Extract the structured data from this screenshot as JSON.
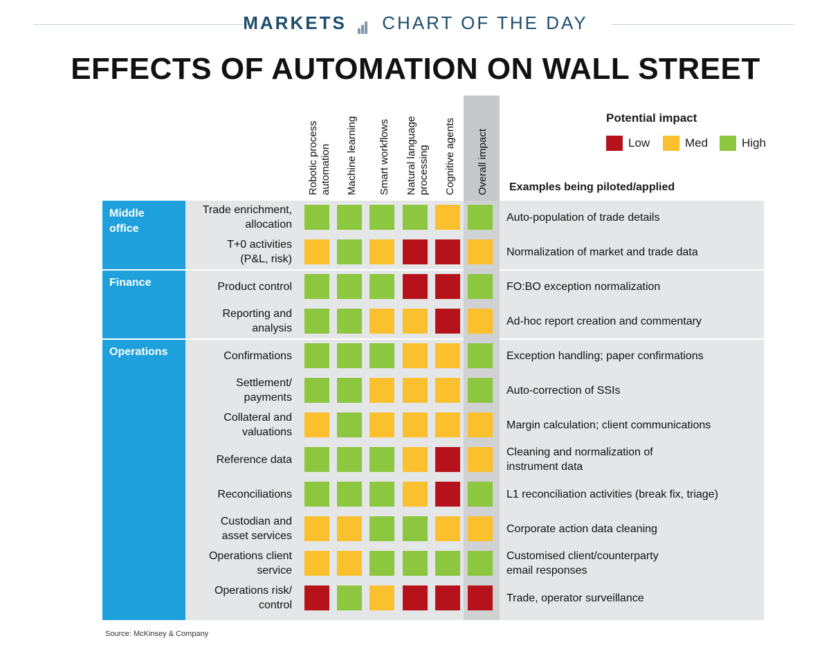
{
  "header": {
    "markets": "MARKETS",
    "chart_of_the_day": "CHART OF THE DAY"
  },
  "colors": {
    "low": "#b5121b",
    "med": "#fbc02d",
    "high": "#8dc63f",
    "section": "#1da0dc",
    "row_bg": "#e4e6e7",
    "overall_bg": "#c6c8ca"
  },
  "icons": {
    "header_icon": "bar-chart-icon"
  },
  "legend": {
    "title": "Potential impact",
    "items": [
      {
        "key": "low",
        "label": "Low"
      },
      {
        "key": "med",
        "label": "Med"
      },
      {
        "key": "high",
        "label": "High"
      }
    ]
  },
  "examples_header": "Examples being piloted/applied",
  "source": "Source: McKinsey & Company",
  "chart_data": {
    "type": "table",
    "title": "EFFECTS OF AUTOMATION ON WALL STREET",
    "columns": [
      {
        "lines": [
          "Robotic process",
          "automation"
        ]
      },
      {
        "lines": [
          "Machine learning"
        ]
      },
      {
        "lines": [
          "Smart workflows"
        ]
      },
      {
        "lines": [
          "Natural language",
          "processing"
        ]
      },
      {
        "lines": [
          "Cognitive agents"
        ]
      },
      {
        "lines": [
          "Overall impact"
        ]
      }
    ],
    "sections": [
      {
        "name_lines": [
          "Middle",
          "office"
        ],
        "rows": [
          0,
          1
        ]
      },
      {
        "name_lines": [
          "Finance"
        ],
        "rows": [
          2,
          3
        ]
      },
      {
        "name_lines": [
          "Operations"
        ],
        "rows": [
          4,
          5,
          6,
          7,
          8,
          9,
          10,
          11
        ]
      }
    ],
    "rows": [
      {
        "label_lines": [
          "Trade enrichment,",
          "allocation"
        ],
        "values": [
          "high",
          "high",
          "high",
          "high",
          "med",
          "high"
        ],
        "example_lines": [
          "Auto-population of trade details"
        ]
      },
      {
        "label_lines": [
          "T+0 activities",
          "(P&L, risk)"
        ],
        "values": [
          "med",
          "high",
          "med",
          "low",
          "low",
          "med"
        ],
        "example_lines": [
          "Normalization of market and trade data"
        ]
      },
      {
        "label_lines": [
          "Product control"
        ],
        "values": [
          "high",
          "high",
          "high",
          "low",
          "low",
          "high"
        ],
        "example_lines": [
          "FO:BO exception normalization"
        ]
      },
      {
        "label_lines": [
          "Reporting and",
          "analysis"
        ],
        "values": [
          "high",
          "high",
          "med",
          "med",
          "low",
          "med"
        ],
        "example_lines": [
          "Ad-hoc report creation and commentary"
        ]
      },
      {
        "label_lines": [
          "Confirmations"
        ],
        "values": [
          "high",
          "high",
          "high",
          "med",
          "med",
          "high"
        ],
        "example_lines": [
          "Exception handling; paper confirmations"
        ]
      },
      {
        "label_lines": [
          "Settlement/",
          "payments"
        ],
        "values": [
          "high",
          "high",
          "med",
          "med",
          "med",
          "high"
        ],
        "example_lines": [
          "Auto-correction of SSIs"
        ]
      },
      {
        "label_lines": [
          "Collateral and",
          "valuations"
        ],
        "values": [
          "med",
          "high",
          "med",
          "med",
          "med",
          "med"
        ],
        "example_lines": [
          "Margin calculation; client communications"
        ]
      },
      {
        "label_lines": [
          "Reference data"
        ],
        "values": [
          "high",
          "high",
          "high",
          "med",
          "low",
          "med"
        ],
        "example_lines": [
          "Cleaning and normalization of",
          "instrument data"
        ]
      },
      {
        "label_lines": [
          "Reconciliations"
        ],
        "values": [
          "high",
          "high",
          "high",
          "med",
          "low",
          "high"
        ],
        "example_lines": [
          "L1 reconciliation activities (break fix, triage)"
        ]
      },
      {
        "label_lines": [
          "Custodian and",
          "asset services"
        ],
        "values": [
          "med",
          "med",
          "high",
          "high",
          "med",
          "med"
        ],
        "example_lines": [
          "Corporate action data cleaning"
        ]
      },
      {
        "label_lines": [
          "Operations client",
          "service"
        ],
        "values": [
          "med",
          "med",
          "high",
          "high",
          "high",
          "high"
        ],
        "example_lines": [
          "Customised client/counterparty",
          "email responses"
        ]
      },
      {
        "label_lines": [
          "Operations risk/",
          "control"
        ],
        "values": [
          "low",
          "high",
          "med",
          "low",
          "low",
          "low"
        ],
        "example_lines": [
          "Trade, operator surveillance"
        ]
      }
    ]
  }
}
